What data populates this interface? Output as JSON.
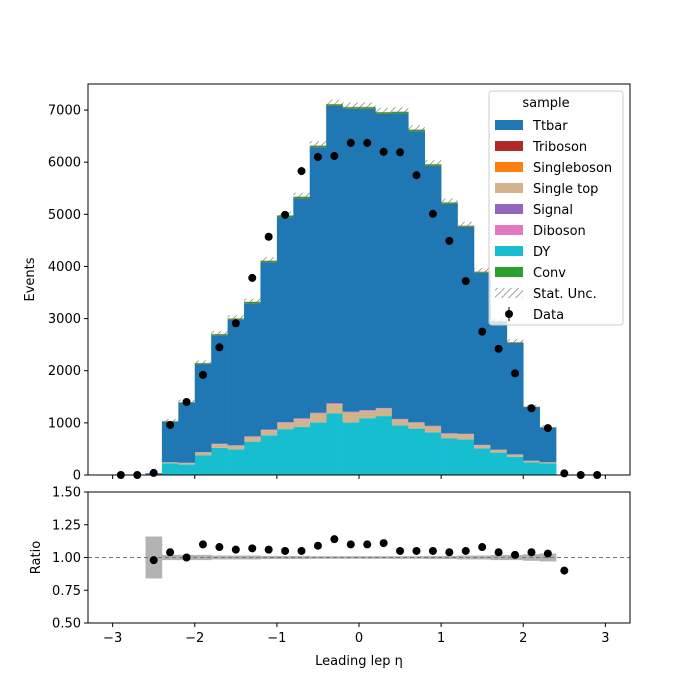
{
  "chart_data": [
    {
      "type": "bar",
      "stacked": true,
      "xlim": [
        -3.3,
        3.3
      ],
      "ylim": [
        0,
        7500
      ],
      "xticks": [
        -3,
        -2,
        -1,
        0,
        1,
        2,
        3
      ],
      "yticks": [
        0,
        1000,
        2000,
        3000,
        4000,
        5000,
        6000,
        7000
      ],
      "ylabel": "Events",
      "xlabel": "",
      "bin_edges": [
        -3.0,
        -2.8,
        -2.6,
        -2.4,
        -2.2,
        -2.0,
        -1.8,
        -1.6,
        -1.4,
        -1.2,
        -1.0,
        -0.8,
        -0.6,
        -0.4,
        -0.2,
        0.0,
        0.2,
        0.4,
        0.6,
        0.8,
        1.0,
        1.2,
        1.4,
        1.6,
        1.8,
        2.0,
        2.2,
        2.4,
        2.6,
        2.8,
        3.0
      ],
      "series": [
        {
          "name": "DY",
          "values": [
            0,
            0,
            0,
            220,
            200,
            380,
            520,
            490,
            640,
            760,
            880,
            920,
            1010,
            1180,
            1010,
            1090,
            1130,
            950,
            890,
            820,
            700,
            680,
            510,
            430,
            350,
            240,
            220,
            0,
            0,
            0
          ]
        },
        {
          "name": "Single top",
          "values": [
            0,
            0,
            0,
            20,
            30,
            50,
            70,
            70,
            90,
            100,
            120,
            150,
            170,
            180,
            190,
            140,
            140,
            110,
            110,
            110,
            90,
            100,
            60,
            50,
            40,
            30,
            20,
            0,
            0,
            0
          ]
        },
        {
          "name": "Diboson",
          "values": [
            0,
            0,
            0,
            3,
            3,
            5,
            6,
            6,
            8,
            8,
            10,
            10,
            10,
            12,
            10,
            10,
            10,
            10,
            8,
            8,
            6,
            6,
            5,
            4,
            3,
            3,
            3,
            0,
            0,
            0
          ]
        },
        {
          "name": "Signal",
          "values": [
            0,
            0,
            20,
            2,
            2,
            3,
            4,
            4,
            5,
            5,
            6,
            6,
            6,
            7,
            6,
            6,
            6,
            6,
            5,
            5,
            4,
            4,
            3,
            3,
            2,
            2,
            2,
            0,
            0,
            0
          ]
        },
        {
          "name": "Ttbar",
          "values": [
            0,
            0,
            15,
            777,
            1150,
            1690,
            2080,
            2410,
            2550,
            3210,
            3930,
            4220,
            5090,
            5700,
            5810,
            5780,
            5640,
            5860,
            5580,
            4990,
            4400,
            3970,
            3300,
            2450,
            2140,
            1020,
            660,
            0,
            0,
            0
          ]
        },
        {
          "name": "Conv",
          "values": [
            0,
            0,
            0,
            10,
            10,
            15,
            20,
            20,
            25,
            25,
            30,
            30,
            30,
            30,
            30,
            30,
            30,
            30,
            30,
            25,
            25,
            20,
            20,
            15,
            10,
            10,
            10,
            0,
            0,
            0
          ]
        },
        {
          "name": "Singleboson",
          "values": [
            0,
            0,
            0,
            5,
            5,
            5,
            5,
            5,
            5,
            5,
            5,
            5,
            5,
            5,
            5,
            5,
            5,
            5,
            5,
            5,
            5,
            5,
            5,
            5,
            5,
            5,
            5,
            0,
            0,
            0
          ]
        },
        {
          "name": "Triboson",
          "values": [
            0,
            0,
            0,
            1,
            1,
            1,
            1,
            1,
            1,
            1,
            1,
            1,
            1,
            1,
            1,
            1,
            1,
            1,
            1,
            1,
            1,
            1,
            1,
            1,
            1,
            1,
            1,
            0,
            0,
            0
          ]
        }
      ],
      "data_points": {
        "name": "Data",
        "x": [
          -2.9,
          -2.7,
          -2.5,
          -2.3,
          -2.1,
          -1.9,
          -1.7,
          -1.5,
          -1.3,
          -1.1,
          -0.9,
          -0.7,
          -0.5,
          -0.3,
          -0.1,
          0.1,
          0.3,
          0.5,
          0.7,
          0.9,
          1.1,
          1.3,
          1.5,
          1.7,
          1.9,
          2.1,
          2.3,
          2.5,
          2.7,
          2.9
        ],
        "y": [
          0,
          0,
          40,
          960,
          1400,
          1920,
          2450,
          2910,
          3780,
          4570,
          4990,
          5830,
          6100,
          6120,
          6370,
          6370,
          6200,
          6190,
          5750,
          5010,
          4490,
          3720,
          2750,
          2420,
          1950,
          1280,
          900,
          30,
          0,
          0
        ]
      },
      "legend": {
        "title": "sample",
        "placement": "top-right",
        "entries": [
          "Ttbar",
          "Triboson",
          "Singleboson",
          "Single top",
          "Signal",
          "Diboson",
          "DY",
          "Conv",
          "Stat. Unc.",
          "Data"
        ]
      },
      "colors": {
        "Ttbar": "#1f77b4",
        "Triboson": "#b02a2a",
        "Singleboson": "#ff7f0e",
        "Single top": "#d2b48c",
        "Signal": "#9467bd",
        "Diboson": "#e377c2",
        "DY": "#17becf",
        "Conv": "#2ca02c",
        "Stat. Unc.": "#888888",
        "Data": "#000000"
      },
      "grid": false
    },
    {
      "type": "scatter",
      "xlim": [
        -3.3,
        3.3
      ],
      "ylim": [
        0.5,
        1.5
      ],
      "xticks": [
        -3,
        -2,
        -1,
        0,
        1,
        2,
        3
      ],
      "yticks": [
        0.5,
        0.75,
        1.0,
        1.25,
        1.5
      ],
      "ytick_labels": [
        "0.50",
        "0.75",
        "1.00",
        "1.25",
        "1.50"
      ],
      "ylabel": "Ratio",
      "xlabel": "Leading lep η",
      "reference_line": 1.0,
      "x": [
        -2.5,
        -2.3,
        -2.1,
        -1.9,
        -1.7,
        -1.5,
        -1.3,
        -1.1,
        -0.9,
        -0.7,
        -0.5,
        -0.3,
        -0.1,
        0.1,
        0.3,
        0.5,
        0.7,
        0.9,
        1.1,
        1.3,
        1.5,
        1.7,
        1.9,
        2.1,
        2.3,
        2.5
      ],
      "y": [
        0.98,
        1.04,
        1.0,
        1.1,
        1.08,
        1.06,
        1.07,
        1.06,
        1.05,
        1.05,
        1.09,
        1.14,
        1.1,
        1.1,
        1.11,
        1.05,
        1.05,
        1.05,
        1.04,
        1.05,
        1.08,
        1.04,
        1.02,
        1.04,
        1.03,
        0.9
      ],
      "uncertainty_band": {
        "bin_edges": [
          -2.6,
          -2.4,
          -2.2,
          -2.0,
          -1.8,
          -1.6,
          -1.4,
          -1.2,
          -1.0,
          -0.8,
          -0.6,
          -0.4,
          -0.2,
          0.0,
          0.2,
          0.4,
          0.6,
          0.8,
          1.0,
          1.2,
          1.4,
          1.6,
          1.8,
          2.0,
          2.2,
          2.4
        ],
        "half_width": [
          0.16,
          0.02,
          0.02,
          0.02,
          0.015,
          0.015,
          0.015,
          0.012,
          0.012,
          0.012,
          0.01,
          0.01,
          0.01,
          0.01,
          0.01,
          0.01,
          0.01,
          0.012,
          0.012,
          0.015,
          0.015,
          0.02,
          0.02,
          0.025,
          0.03
        ]
      },
      "grid": false
    }
  ]
}
